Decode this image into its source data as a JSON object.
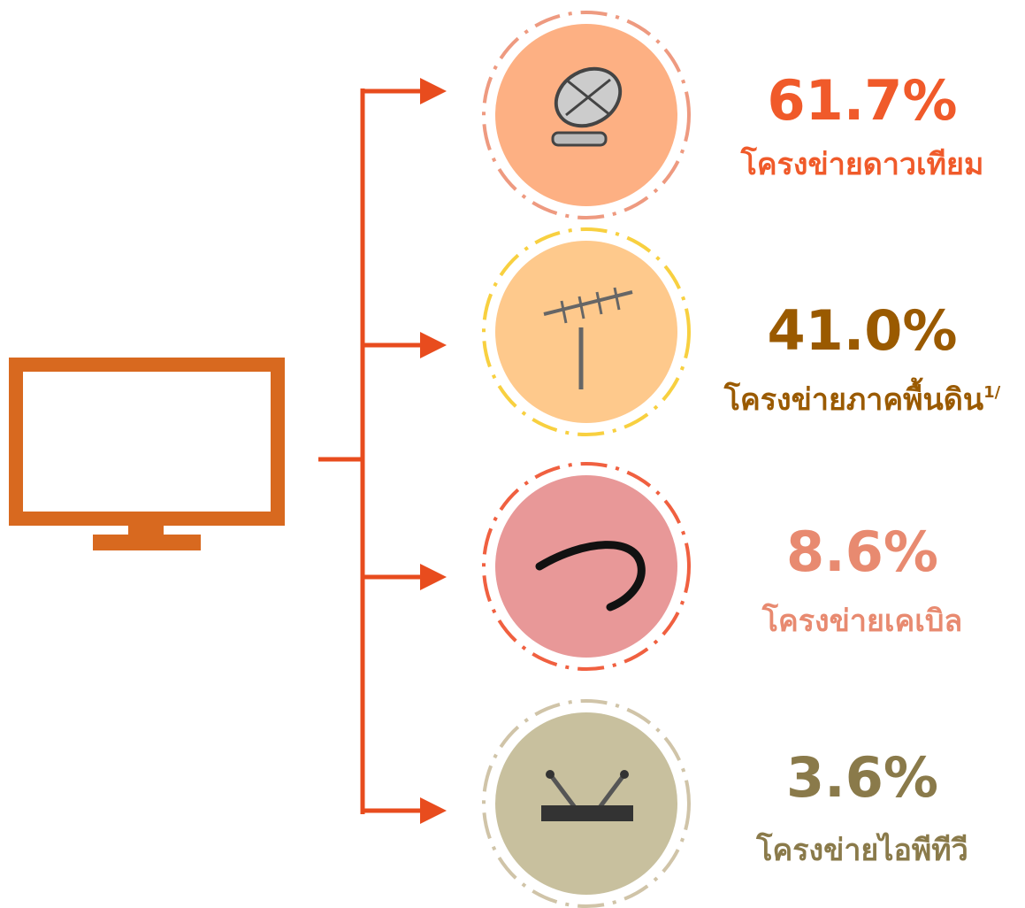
{
  "items": [
    {
      "percent": "61.7%",
      "label": "โครงข่ายดาวเทียม"
    },
    {
      "percent": "41.0%",
      "label": "โครงข่ายภาคพื้นดิน",
      "note": "1/"
    },
    {
      "percent": "8.6%",
      "label": "โครงข่ายเคเบิล"
    },
    {
      "percent": "3.6%",
      "label": "โครงข่ายไอพีทีวี"
    }
  ]
}
